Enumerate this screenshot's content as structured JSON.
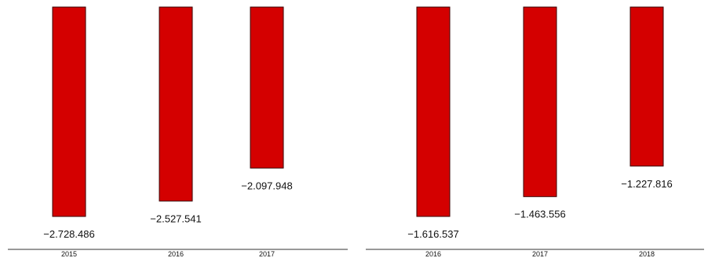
{
  "chart_data": [
    {
      "type": "bar",
      "categories": [
        "2015",
        "2016",
        "2017"
      ],
      "values": [
        -2728486,
        -2527541,
        -2097948
      ],
      "value_labels": [
        "−2.728.486",
        "−2.527.541",
        "−2.097.948"
      ],
      "title": "",
      "xlabel": "",
      "ylabel": "",
      "ylim": [
        -2728486,
        0
      ],
      "grid": false,
      "colors": {
        "bar": "#d40000"
      }
    },
    {
      "type": "bar",
      "categories": [
        "2016",
        "2017",
        "2018"
      ],
      "values": [
        -1616537,
        -1463556,
        -1227816
      ],
      "value_labels": [
        "−1.616.537",
        "−1.463.556",
        "−1.227.816"
      ],
      "title": "",
      "xlabel": "",
      "ylabel": "",
      "ylim": [
        -1616537,
        0
      ],
      "grid": false,
      "colors": {
        "bar": "#d40000"
      }
    }
  ]
}
